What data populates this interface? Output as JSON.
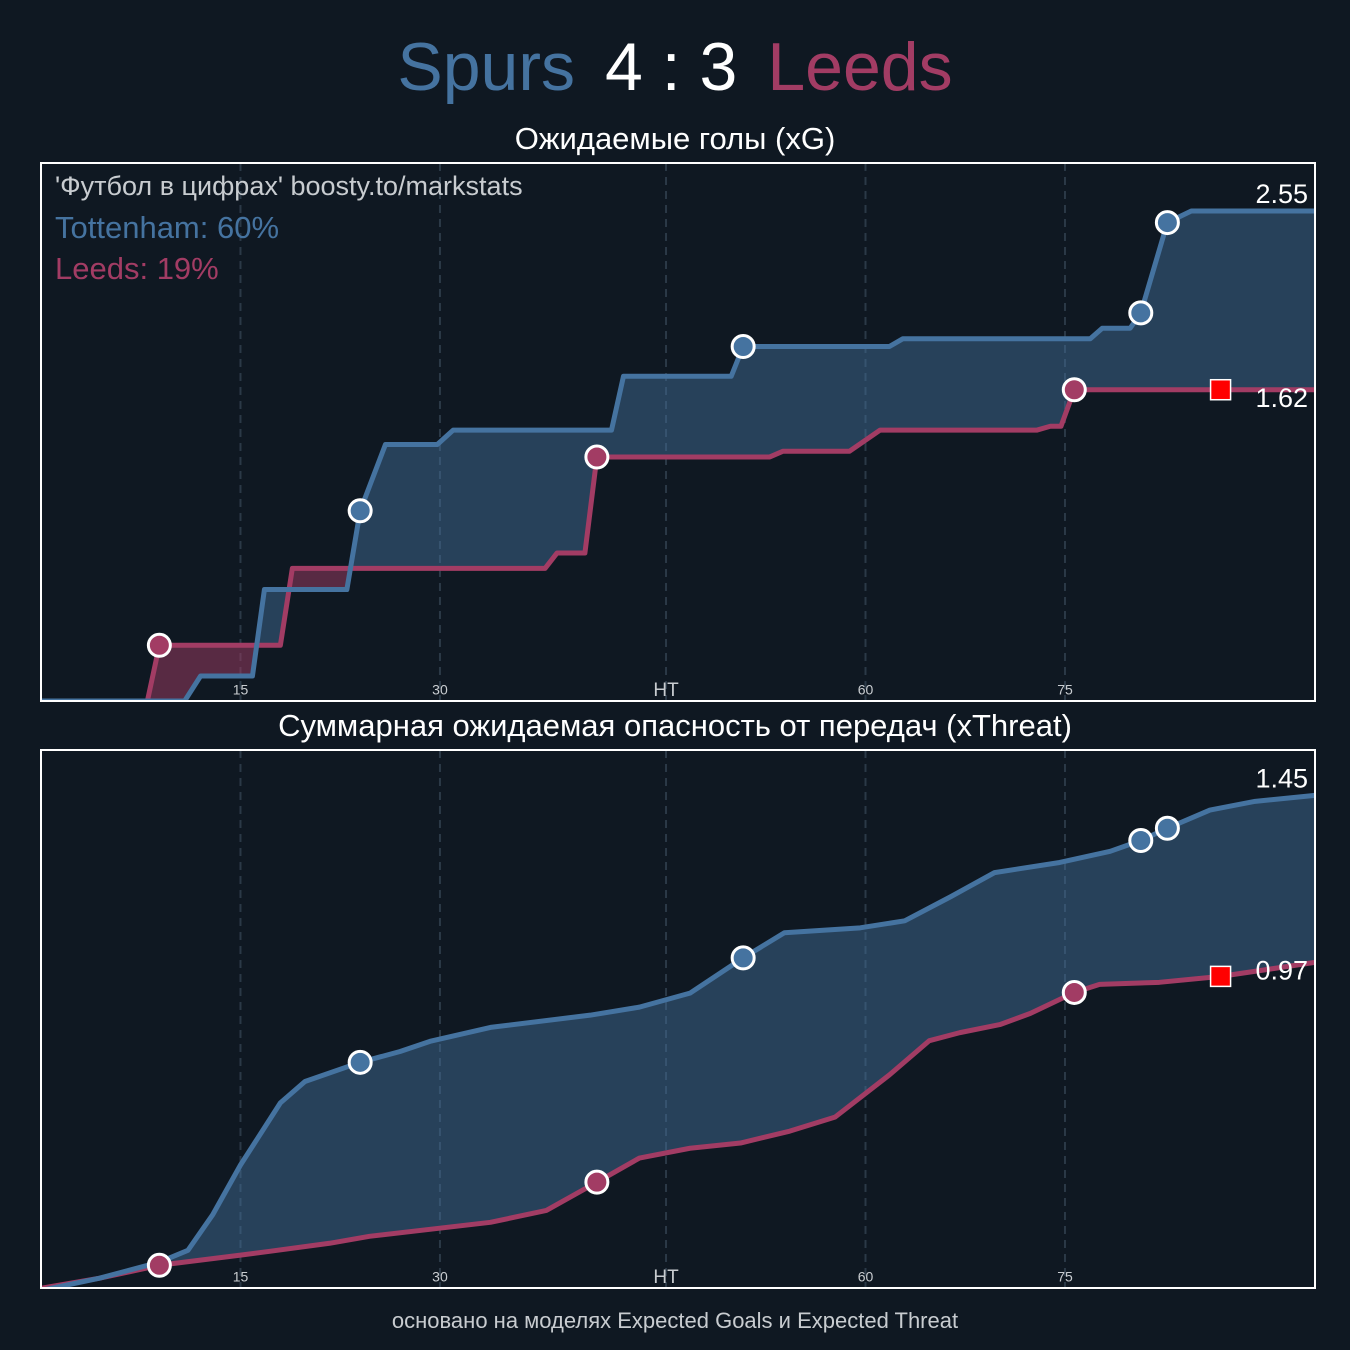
{
  "header": {
    "home": "Spurs",
    "score": "4 : 3",
    "away": "Leeds",
    "home_color": "#4573a0",
    "away_color": "#a23c64"
  },
  "footer": "основано на моделях Expected Goals и Expected Threat",
  "chart_data": [
    {
      "type": "line",
      "title": "Ожидаемые голы (xG)",
      "xlim": [
        0,
        95.8
      ],
      "ylim": [
        0,
        2.8
      ],
      "xticks": [
        15,
        30,
        {
          "value": 47,
          "label": "HT"
        },
        {
          "value": 62,
          "label": "60"
        },
        {
          "value": 77,
          "label": "75"
        }
      ],
      "grid": true,
      "annotations": [
        {
          "text": "'Футбол в цифрах' boosty.to/markstats",
          "color": "#c8ccd0"
        },
        {
          "text": "Tottenham: 60%",
          "color": "#4573a0"
        },
        {
          "text": "Leeds: 19%",
          "color": "#a23c64"
        }
      ],
      "series": [
        {
          "color": "#4573a0",
          "x": [
            0,
            10.8,
            12,
            15.9,
            16.8,
            23,
            24,
            25.9,
            29.8,
            31,
            42.9,
            43.8,
            51.9,
            52.8,
            63.8,
            64.8,
            78.9,
            79.8,
            81.9,
            82.7,
            84.7,
            86.5,
            95.8
          ],
          "values": [
            0,
            0,
            0.13,
            0.13,
            0.58,
            0.58,
            0.99,
            1.335,
            1.335,
            1.41,
            1.41,
            1.69,
            1.69,
            1.845,
            1.845,
            1.885,
            1.885,
            1.94,
            1.94,
            2.02,
            2.49,
            2.55,
            2.55
          ],
          "final": 2.55,
          "goals": {
            "x": [
              24,
              52.8,
              82.7,
              84.7
            ],
            "y": [
              0.99,
              1.845,
              2.02,
              2.49
            ]
          }
        },
        {
          "color": "#a23c64",
          "x": [
            0,
            8,
            8.9,
            18,
            18.9,
            37.9,
            38.8,
            40.9,
            41.8,
            54.8,
            55.8,
            60.8,
            63.1,
            74.9,
            75.9,
            76.7,
            77.7,
            95.8
          ],
          "values": [
            0,
            0,
            0.29,
            0.29,
            0.69,
            0.69,
            0.77,
            0.77,
            1.27,
            1.27,
            1.3,
            1.3,
            1.41,
            1.41,
            1.43,
            1.43,
            1.62,
            1.62
          ],
          "final": 1.62,
          "goals": {
            "x": [
              8.9,
              41.8,
              77.7
            ],
            "y": [
              0.29,
              1.27,
              1.62
            ]
          },
          "red_card": {
            "x": 88.7,
            "y": 1.62
          }
        }
      ]
    },
    {
      "type": "line",
      "title": "Суммарная ожидаемая опасность от передач (xThreat)",
      "xlim": [
        0,
        95.8
      ],
      "ylim": [
        0.04,
        1.58
      ],
      "xticks": [
        15,
        30,
        {
          "value": 47,
          "label": "HT"
        },
        {
          "value": 62,
          "label": "60"
        },
        {
          "value": 77,
          "label": "75"
        }
      ],
      "grid": true,
      "series": [
        {
          "color": "#4573a0",
          "x": [
            0,
            4.4,
            8.9,
            11.05,
            12.9,
            15,
            18,
            19.85,
            24,
            27,
            29.25,
            33.8,
            41.3,
            45,
            48.8,
            52.8,
            55.9,
            61.6,
            64.95,
            68.4,
            71.7,
            76.6,
            80.4,
            82.7,
            84.7,
            87.9,
            91.3,
            95.8
          ],
          "values": [
            0.033,
            0.068,
            0.114,
            0.148,
            0.249,
            0.392,
            0.57,
            0.631,
            0.686,
            0.717,
            0.746,
            0.786,
            0.821,
            0.844,
            0.884,
            0.985,
            1.057,
            1.071,
            1.091,
            1.16,
            1.229,
            1.258,
            1.29,
            1.321,
            1.356,
            1.408,
            1.433,
            1.45
          ],
          "final": 1.45,
          "goals": {
            "x": [
              24,
              52.8,
              82.7,
              84.7
            ],
            "y": [
              0.686,
              0.985,
              1.321,
              1.356
            ]
          }
        },
        {
          "color": "#a23c64",
          "x": [
            0,
            4.4,
            8.9,
            15,
            17.2,
            21.7,
            24.7,
            29.25,
            33.8,
            38,
            41.8,
            45,
            48.8,
            52.6,
            56.3,
            59.7,
            63.8,
            66.8,
            69.1,
            72.1,
            74.4,
            77.7,
            79.6,
            84.1,
            88.7,
            95.8
          ],
          "values": [
            0.039,
            0.068,
            0.105,
            0.134,
            0.145,
            0.168,
            0.188,
            0.208,
            0.228,
            0.262,
            0.343,
            0.412,
            0.44,
            0.455,
            0.489,
            0.529,
            0.65,
            0.748,
            0.771,
            0.794,
            0.826,
            0.886,
            0.909,
            0.915,
            0.932,
            0.972
          ],
          "final": 0.97,
          "goals": {
            "x": [
              8.9,
              41.8,
              77.7
            ],
            "y": [
              0.105,
              0.343,
              0.886
            ]
          },
          "red_card": {
            "x": 88.7,
            "y": 0.932
          }
        }
      ]
    }
  ]
}
